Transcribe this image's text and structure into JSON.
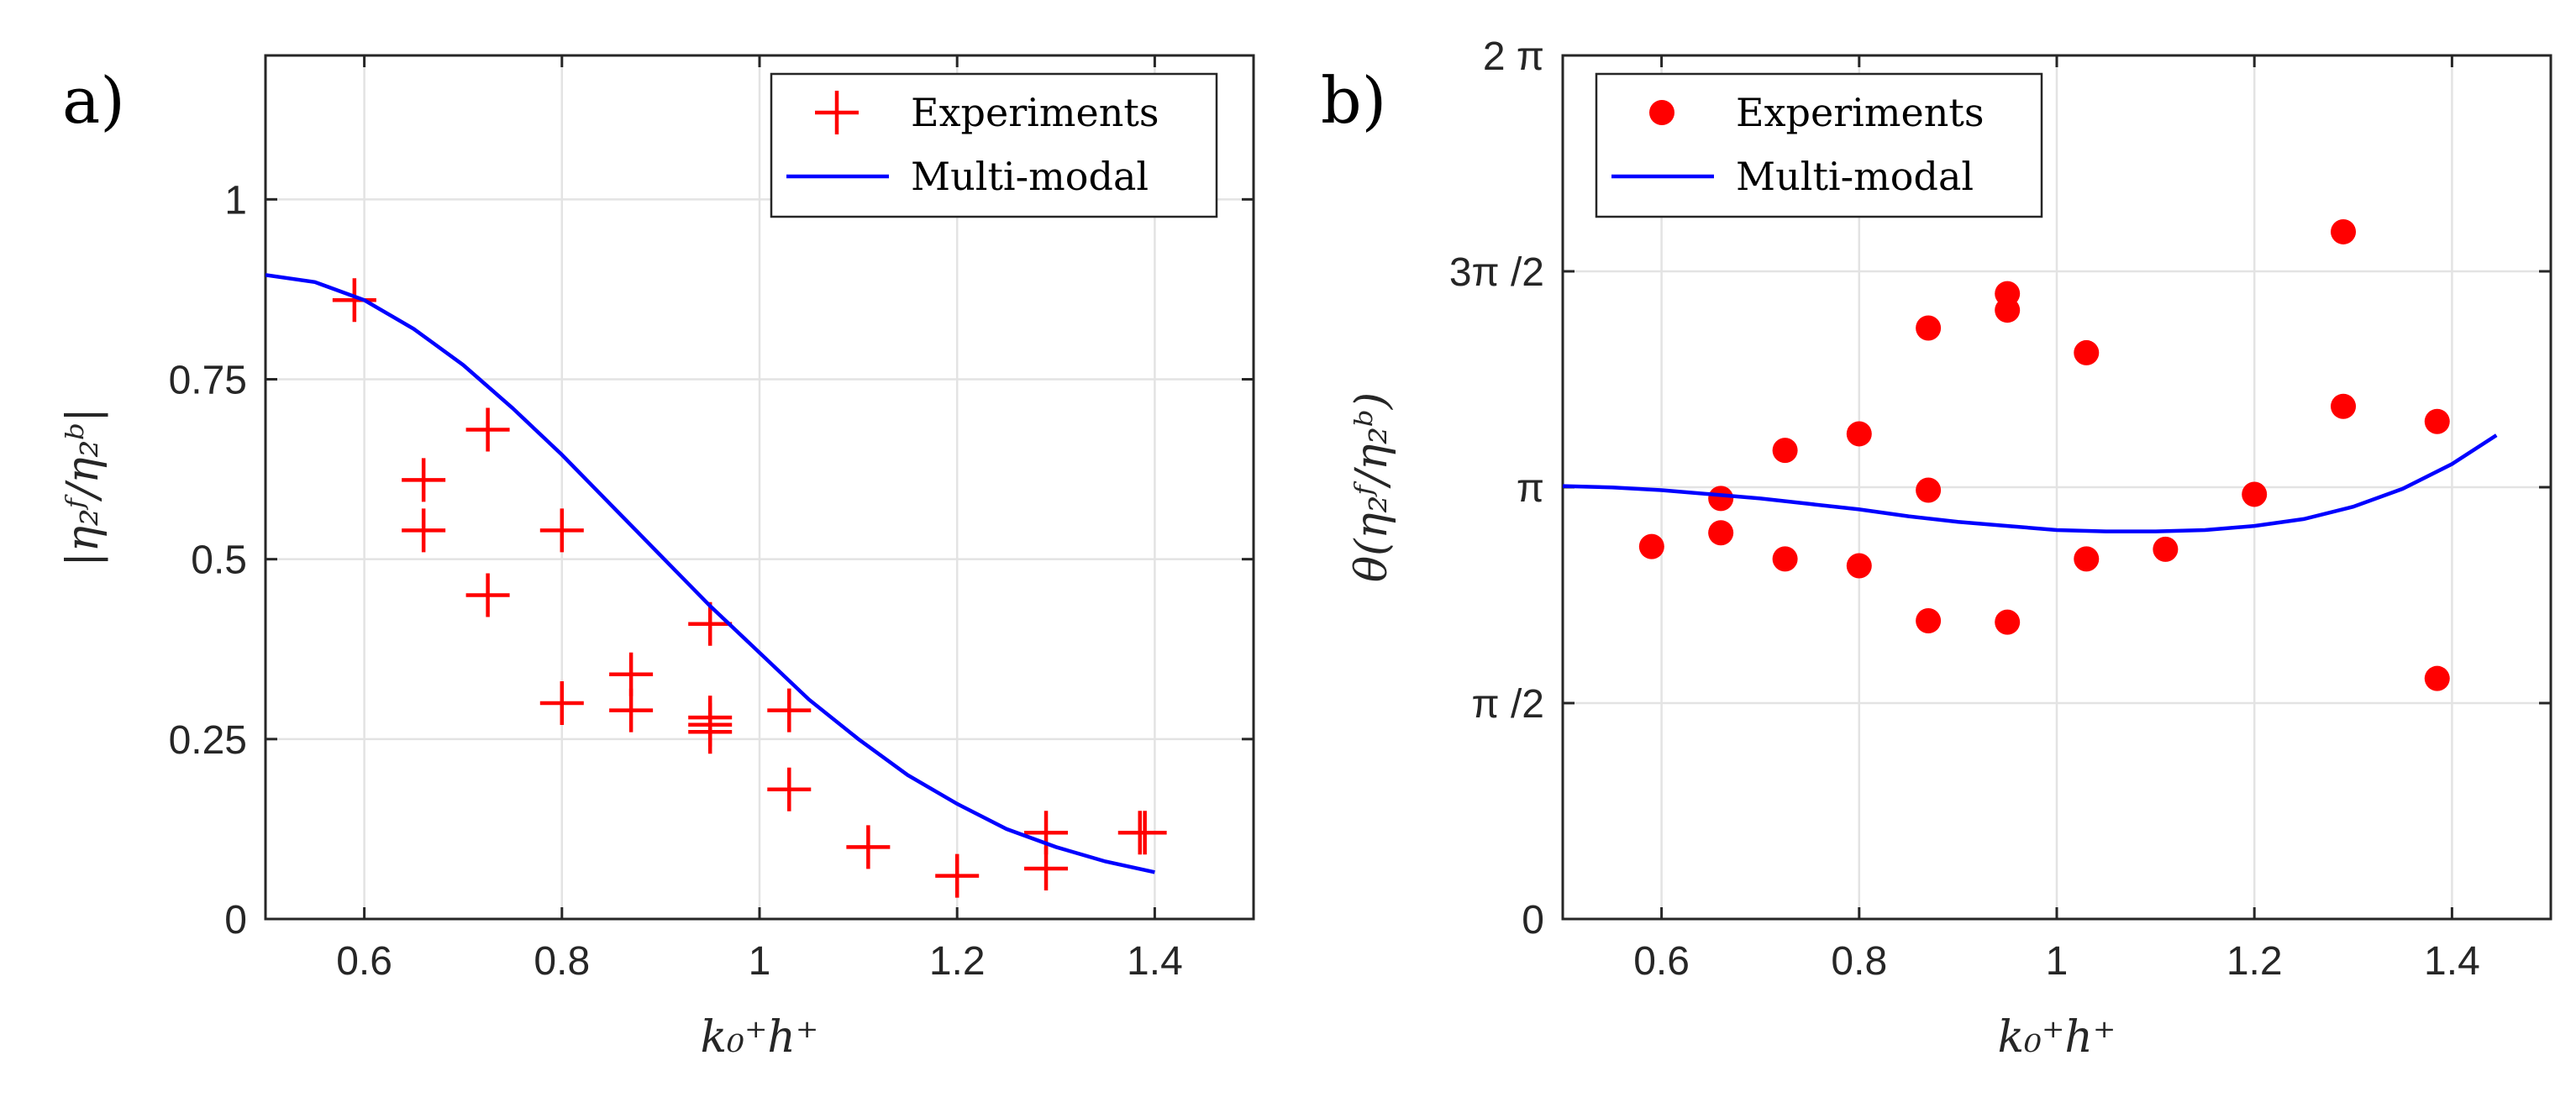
{
  "chart_data": [
    {
      "type": "scatter",
      "panel_label": "a)",
      "xlabel": "k₀⁺h⁺",
      "ylabel": "|η₂ᶠ/η₂ᵇ|",
      "xlim": [
        0.5,
        1.5
      ],
      "ylim": [
        0,
        1.2
      ],
      "x_ticks": [
        0.6,
        0.8,
        1,
        1.2,
        1.4
      ],
      "x_tick_labels": [
        "0.6",
        "0.8",
        "1",
        "1.2",
        "1.4"
      ],
      "y_ticks": [
        0,
        0.25,
        0.5,
        0.75,
        1
      ],
      "y_tick_labels": [
        "0",
        "0.25",
        "0.5",
        "0.75",
        "1"
      ],
      "grid": true,
      "legend_position": "top-right",
      "series": [
        {
          "name": "Experiments",
          "marker": "plus",
          "color": "#ff0000",
          "x": [
            0.59,
            0.66,
            0.66,
            0.725,
            0.725,
            0.8,
            0.8,
            0.87,
            0.87,
            0.95,
            0.95,
            0.95,
            0.95,
            1.03,
            1.03,
            1.11,
            1.2,
            1.29,
            1.29,
            1.385,
            1.39
          ],
          "y": [
            0.86,
            0.61,
            0.54,
            0.68,
            0.45,
            0.54,
            0.3,
            0.34,
            0.29,
            0.41,
            0.28,
            0.26,
            0.27,
            0.29,
            0.18,
            0.1,
            0.06,
            0.12,
            0.07,
            0.12,
            0.12
          ]
        },
        {
          "name": "Multi-modal",
          "marker": "line",
          "color": "#0000ff",
          "x": [
            0.5,
            0.55,
            0.6,
            0.65,
            0.7,
            0.75,
            0.8,
            0.85,
            0.9,
            0.95,
            1.0,
            1.05,
            1.1,
            1.15,
            1.2,
            1.25,
            1.3,
            1.35,
            1.4
          ],
          "y": [
            0.895,
            0.885,
            0.86,
            0.82,
            0.77,
            0.71,
            0.645,
            0.575,
            0.505,
            0.435,
            0.37,
            0.305,
            0.25,
            0.2,
            0.16,
            0.125,
            0.1,
            0.08,
            0.065
          ]
        }
      ]
    },
    {
      "type": "scatter",
      "panel_label": "b)",
      "xlabel": "k₀⁺h⁺",
      "ylabel": "θ(η₂ᶠ/η₂ᵇ)",
      "xlim": [
        0.5,
        1.5
      ],
      "ylim": [
        0,
        6.2832
      ],
      "x_ticks": [
        0.6,
        0.8,
        1,
        1.2,
        1.4
      ],
      "x_tick_labels": [
        "0.6",
        "0.8",
        "1",
        "1.2",
        "1.4"
      ],
      "y_ticks": [
        0,
        1.5708,
        3.1416,
        4.7124,
        6.2832
      ],
      "y_tick_labels": [
        "0",
        "π /2",
        "π",
        "3π /2",
        "2 π"
      ],
      "grid": true,
      "legend_position": "top-left",
      "series": [
        {
          "name": "Experiments",
          "marker": "dot",
          "color": "#ff0000",
          "x": [
            0.59,
            0.66,
            0.66,
            0.725,
            0.725,
            0.8,
            0.8,
            0.87,
            0.87,
            0.87,
            0.95,
            0.95,
            0.95,
            1.03,
            1.03,
            1.11,
            1.2,
            1.29,
            1.29,
            1.385,
            1.385
          ],
          "y": [
            2.71,
            3.06,
            2.81,
            3.41,
            2.62,
            3.53,
            2.57,
            4.3,
            3.12,
            2.17,
            4.55,
            4.43,
            2.16,
            4.12,
            2.62,
            2.69,
            3.09,
            5.0,
            3.73,
            3.62,
            1.75
          ]
        },
        {
          "name": "Multi-modal",
          "marker": "line",
          "color": "#0000ff",
          "x": [
            0.5,
            0.55,
            0.6,
            0.65,
            0.7,
            0.75,
            0.8,
            0.85,
            0.9,
            0.95,
            1.0,
            1.05,
            1.1,
            1.15,
            1.2,
            1.25,
            1.3,
            1.35,
            1.4,
            1.445
          ],
          "y": [
            3.15,
            3.14,
            3.12,
            3.09,
            3.06,
            3.02,
            2.98,
            2.93,
            2.89,
            2.86,
            2.83,
            2.82,
            2.82,
            2.83,
            2.86,
            2.91,
            3.0,
            3.13,
            3.31,
            3.52
          ]
        }
      ]
    }
  ]
}
